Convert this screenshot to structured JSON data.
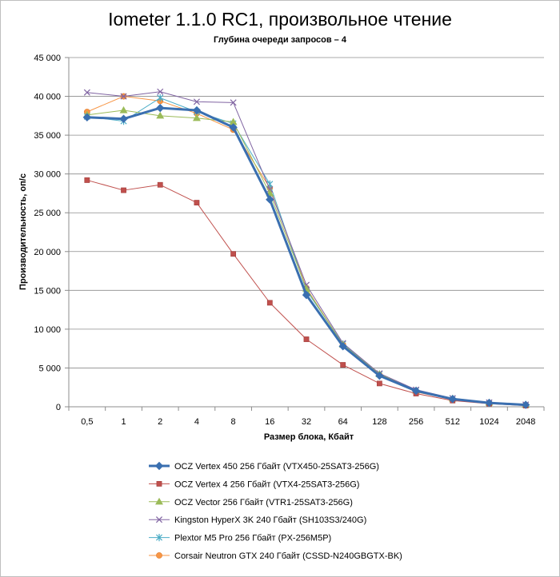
{
  "chart_data": {
    "type": "line",
    "title": "Iometer 1.1.0 RC1, произвольное чтение",
    "subtitle": "Глубина очереди запросов – 4",
    "xlabel": "Размер блока, Кбайт",
    "ylabel": "Производительность, оп/с",
    "categories": [
      "0,5",
      "1",
      "2",
      "4",
      "8",
      "16",
      "32",
      "64",
      "128",
      "256",
      "512",
      "1024",
      "2048"
    ],
    "ylim": [
      0,
      45000
    ],
    "yticks": [
      0,
      5000,
      10000,
      15000,
      20000,
      25000,
      30000,
      35000,
      40000,
      45000
    ],
    "ytick_labels": [
      "0",
      "5 000",
      "10 000",
      "15 000",
      "20 000",
      "25 000",
      "30 000",
      "35 000",
      "40 000",
      "45 000"
    ],
    "grid": true,
    "legend_position": "bottom",
    "series": [
      {
        "name": "OCZ Vertex  450 256 Гбайт (VTX450-25SAT3-256G)",
        "color": "#3a6fb0",
        "marker": "diamond",
        "bold": true,
        "values": [
          37300,
          37100,
          38500,
          38200,
          36000,
          26700,
          14400,
          7800,
          4000,
          2050,
          1000,
          500,
          250
        ]
      },
      {
        "name": "OCZ Vertex  4 256 Гбайт (VTX4-25SAT3-256G)",
        "color": "#c0504d",
        "marker": "square",
        "bold": false,
        "values": [
          29200,
          27900,
          28600,
          26300,
          19700,
          13400,
          8700,
          5400,
          3000,
          1700,
          800,
          400,
          150
        ]
      },
      {
        "name": "OCZ Vector  256 Гбайт (VTR1-25SAT3-256G)",
        "color": "#9bbb59",
        "marker": "triangle",
        "bold": false,
        "values": [
          37600,
          38200,
          37500,
          37200,
          36700,
          27500,
          15200,
          8000,
          4200,
          2100,
          1050,
          520,
          260
        ]
      },
      {
        "name": "Kingston HyperX 3K 240 Гбайт (SH103S3/240G)",
        "color": "#8064a2",
        "marker": "x",
        "bold": false,
        "values": [
          40500,
          40000,
          40600,
          39300,
          39200,
          28000,
          15700,
          8200,
          4300,
          2200,
          1100,
          550,
          280
        ]
      },
      {
        "name": "Plextor M5 Pro 256 Гбайт (PX-256M5P)",
        "color": "#4bacc6",
        "marker": "star",
        "bold": false,
        "values": [
          37400,
          36800,
          39800,
          38000,
          36500,
          28700,
          15000,
          8100,
          4200,
          2100,
          1050,
          520,
          260
        ]
      },
      {
        "name": "Corsair Neutron GTX 240 Гбайт (CSSD-N240GBGTX-BK)",
        "color": "#f79646",
        "marker": "circle",
        "bold": false,
        "values": [
          38000,
          40000,
          39400,
          37800,
          35700,
          28200,
          15300,
          8000,
          4100,
          1900,
          950,
          480,
          200
        ]
      }
    ]
  }
}
